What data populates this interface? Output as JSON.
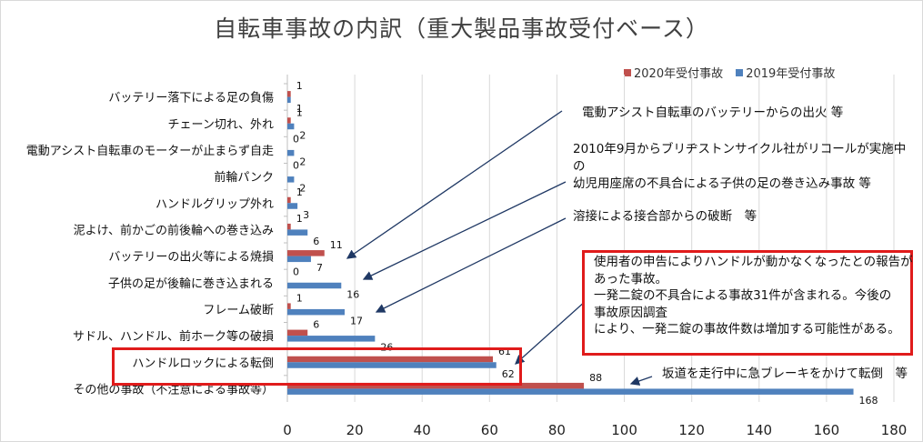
{
  "chart_data": {
    "type": "bar",
    "orientation": "horizontal",
    "title": "自転車事故の内訳（重大製品事故受付ベース）",
    "categories": [
      "バッテリー落下による足の負傷",
      "チェーン切れ、外れ",
      "電動アシスト自転車のモーターが止まらず自走",
      "前輪パンク",
      "ハンドルグリップ外れ",
      "泥よけ、前かごの前後輪への巻き込み",
      "バッテリーの出火等による焼損",
      "子供の足が後輪に巻き込まれる",
      "フレーム破断",
      "サドル、ハンドル、前ホーク等の破損",
      "ハンドルロックによる転倒",
      "その他の事故（不注意による事故等）"
    ],
    "series": [
      {
        "name": "2020年受付事故",
        "color": "#c0504d",
        "values": [
          1,
          1,
          0,
          0,
          1,
          1,
          11,
          0,
          1,
          6,
          61,
          88
        ]
      },
      {
        "name": "2019年受付事故",
        "color": "#4f81bd",
        "values": [
          1,
          2,
          2,
          2,
          3,
          6,
          7,
          16,
          17,
          26,
          62,
          168
        ]
      }
    ],
    "xlim": [
      0,
      180
    ],
    "xticks": [
      0,
      20,
      40,
      60,
      80,
      100,
      120,
      140,
      160,
      180
    ],
    "grid": "vertical",
    "legend_position": "top-right",
    "highlighted_category": "ハンドルロックによる転倒"
  },
  "annotations": {
    "battery_fire": "電動アシスト自転車のバッテリーからの出火 等",
    "child_foot": [
      "2010年9月からブリヂストンサイクル社がリコールが実施中",
      "の",
      "幼児用座席の不具合による子供の足の巻き込み事故 等"
    ],
    "frame": "溶接による接合部からの破断　等",
    "handle_lock": [
      "使用者の申告によりハンドルが動かなくなったとの報告が",
      "あった事故。",
      "一発二錠の不具合による事故31件が含まれる。今後の",
      "事故原因調査",
      "により、一発二錠の事故件数は増加する可能性がある。"
    ],
    "other": "坂道を走行中に急ブレーキをかけて転倒　等"
  },
  "colors": {
    "highlight": "#e01b1b",
    "arrow": "#1f3864",
    "grid": "#d9d9d9"
  }
}
